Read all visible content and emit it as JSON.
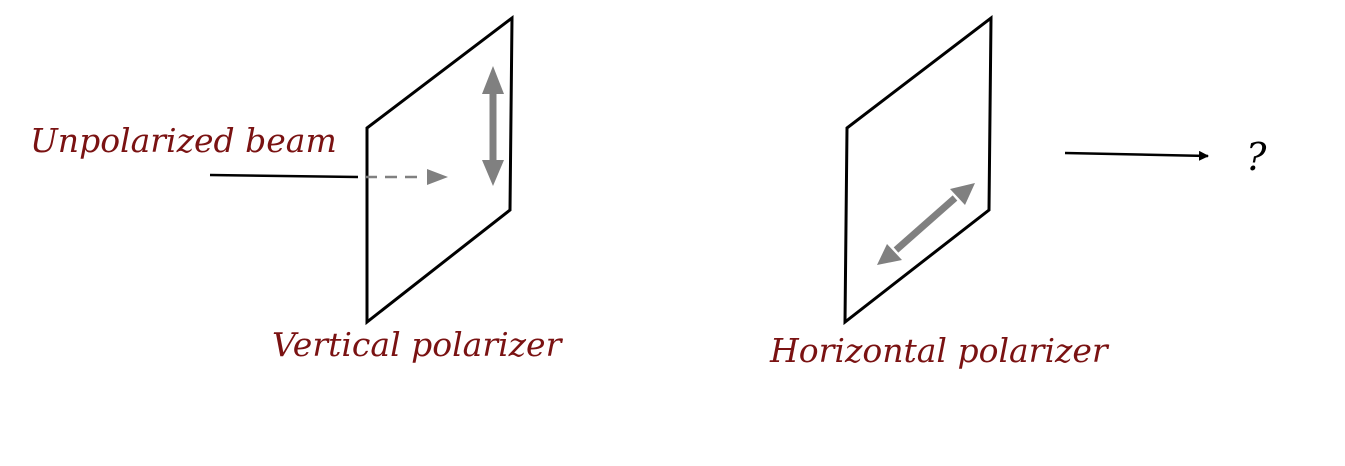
{
  "labels": {
    "unpolarized_beam": "Unpolarized beam",
    "vertical_polarizer": "Vertical polarizer",
    "horizontal_polarizer": "Horizontal polarizer",
    "output_unknown": "?"
  },
  "colors": {
    "label_text": "#7a1212",
    "frame_line": "#000000",
    "polarization_arrow": "#808080",
    "question_mark": "#000000"
  }
}
